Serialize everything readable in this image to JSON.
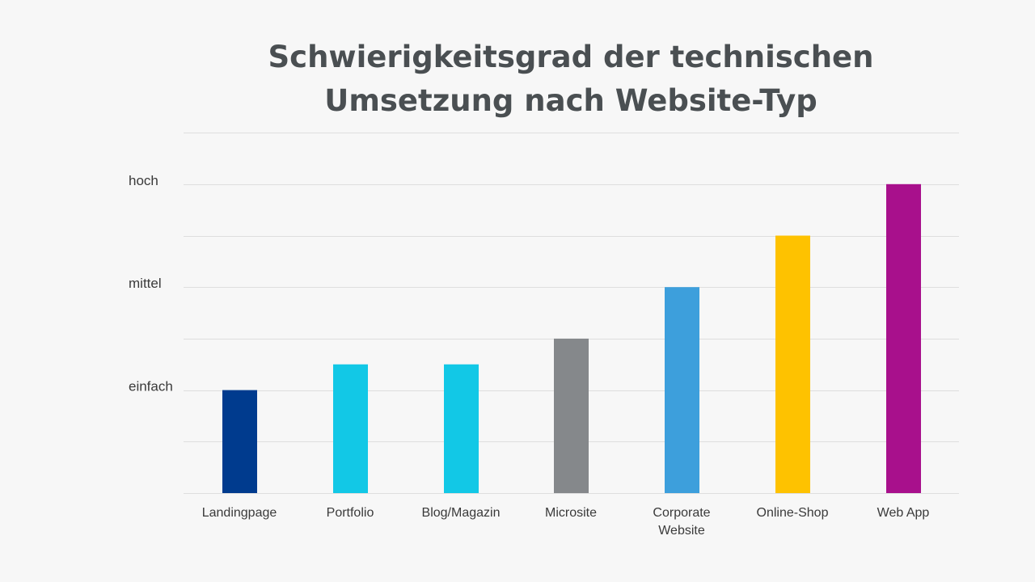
{
  "chart_data": {
    "type": "bar",
    "title": "Schwierigkeitsgrad der technischen Umsetzung nach Website-Typ",
    "title_lines": [
      "Schwierigkeitsgrad der technischen",
      "Umsetzung nach Website-Typ"
    ],
    "xlabel": "",
    "ylabel": "",
    "categories": [
      {
        "label": "Landingpage",
        "lines": [
          "Landingpage"
        ]
      },
      {
        "label": "Portfolio",
        "lines": [
          "Portfolio"
        ]
      },
      {
        "label": "Blog/Magazin",
        "lines": [
          "Blog/Magazin"
        ]
      },
      {
        "label": "Microsite",
        "lines": [
          "Microsite"
        ]
      },
      {
        "label": "Corporate Website",
        "lines": [
          "Corporate",
          "Website"
        ]
      },
      {
        "label": "Online-Shop",
        "lines": [
          "Online-Shop"
        ]
      },
      {
        "label": "Web App",
        "lines": [
          "Web App"
        ]
      }
    ],
    "values": [
      2,
      2.5,
      2.5,
      3,
      4,
      5,
      6
    ],
    "bar_colors": [
      "#003b8e",
      "#12c8e6",
      "#12c8e6",
      "#85888b",
      "#3d9fdc",
      "#fec200",
      "#a8108c"
    ],
    "ylim": [
      0,
      6
    ],
    "y_ticks": [
      {
        "label": "einfach",
        "value": 2
      },
      {
        "label": "mittel",
        "value": 4
      },
      {
        "label": "hoch",
        "value": 6
      }
    ],
    "gridlines": [
      0,
      1,
      2,
      3,
      4,
      5,
      6,
      7
    ],
    "grid": true,
    "legend": "none"
  }
}
